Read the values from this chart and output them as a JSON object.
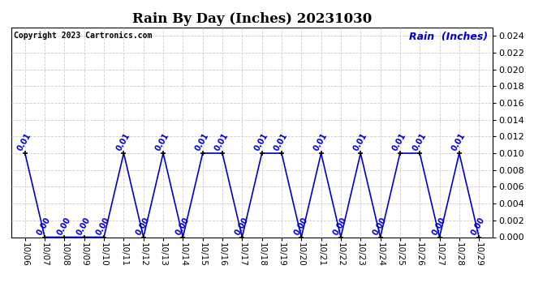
{
  "title": "Rain By Day (Inches) 20231030",
  "copyright_text": "Copyright 2023 Cartronics.com",
  "legend_label": "Rain  (Inches)",
  "line_color": "#0000cc",
  "background_color": "#ffffff",
  "grid_color": "#cccccc",
  "ylim": [
    0.0,
    0.025
  ],
  "yticks": [
    0.0,
    0.002,
    0.004,
    0.006,
    0.008,
    0.01,
    0.012,
    0.014,
    0.016,
    0.018,
    0.02,
    0.022,
    0.024
  ],
  "dates": [
    "10/06",
    "10/07",
    "10/08",
    "10/09",
    "10/10",
    "10/11",
    "10/12",
    "10/13",
    "10/14",
    "10/15",
    "10/16",
    "10/17",
    "10/18",
    "10/19",
    "10/20",
    "10/21",
    "10/22",
    "10/23",
    "10/24",
    "10/25",
    "10/26",
    "10/27",
    "10/28",
    "10/29"
  ],
  "values": [
    0.01,
    0.0,
    0.0,
    0.0,
    0.0,
    0.01,
    0.0,
    0.01,
    0.0,
    0.01,
    0.01,
    0.0,
    0.01,
    0.01,
    0.0,
    0.01,
    0.0,
    0.01,
    0.0,
    0.01,
    0.01,
    0.0,
    0.01,
    0.0
  ],
  "marker_size": 4,
  "title_fontsize": 12,
  "copyright_fontsize": 7,
  "legend_fontsize": 9,
  "annotation_fontsize": 7,
  "tick_fontsize": 7.5,
  "ytick_fontsize": 8
}
